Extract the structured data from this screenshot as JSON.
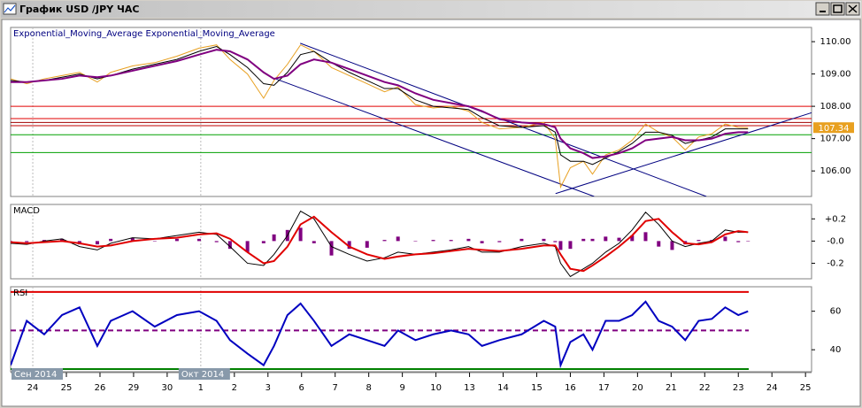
{
  "window_title": "График USD /JPY ЧАС",
  "x_axis": {
    "xlim": [
      -0.66,
      23.18
    ],
    "days": [
      "24",
      "25",
      "26",
      "29",
      "30",
      "1",
      "2",
      "3",
      "6",
      "7",
      "8",
      "9",
      "10",
      "13",
      "14",
      "15",
      "16",
      "17",
      "20",
      "21",
      "22",
      "23",
      "24",
      "25"
    ],
    "months": [
      {
        "value": 0,
        "label": "Сен 2014"
      },
      {
        "value": 5,
        "label": "Окт 2014"
      }
    ],
    "x": [
      -0.66,
      -0.18,
      0.34,
      0.87,
      1.39,
      1.92,
      2.32,
      2.97,
      3.63,
      4.29,
      4.95,
      5.47,
      5.87,
      6.39,
      6.87,
      7.18,
      7.58,
      7.97,
      8.37,
      8.89,
      9.42,
      9.95,
      10.47,
      10.87,
      11.39,
      11.92,
      12.45,
      12.97,
      13.37,
      13.89,
      14.55,
      15.21,
      15.55,
      15.71,
      16.0,
      16.39,
      16.66,
      17.05,
      17.45,
      17.84,
      18.24,
      18.63,
      19.03,
      19.42,
      19.82,
      20.21,
      20.61,
      21.0,
      21.29
    ]
  },
  "chart_data": [
    {
      "type": "line",
      "title": "Exponential_Moving_Average Exponential_Moving_Average",
      "ylim": [
        105.21,
        110.44
      ],
      "yticks": [
        {
          "value": 106,
          "label": "106.00"
        },
        {
          "value": 107,
          "label": "107.00"
        },
        {
          "value": 108,
          "label": "108.00"
        },
        {
          "value": 109,
          "label": "109.00"
        },
        {
          "value": 110,
          "label": "110.00"
        }
      ],
      "last_price": 107.34,
      "levels": [
        {
          "value": 108.0,
          "color": "#e00000"
        },
        {
          "value": 107.62,
          "color": "#e00000"
        },
        {
          "value": 107.5,
          "color": "#a00000"
        },
        {
          "value": 107.4,
          "color": "#c00000"
        },
        {
          "value": 107.12,
          "color": "#00a000"
        },
        {
          "value": 106.57,
          "color": "#00a000"
        }
      ],
      "trendlines": [
        {
          "points": [
            [
              7.96,
              109.95
            ],
            [
              20.05,
              105.21
            ]
          ],
          "color": "#000080"
        },
        {
          "points": [
            [
              7.2,
              108.86
            ],
            [
              16.71,
              105.21
            ]
          ],
          "color": "#000080"
        },
        {
          "points": [
            [
              15.56,
              105.3
            ],
            [
              23.18,
              107.8
            ]
          ],
          "color": "#000080"
        }
      ],
      "series": [
        {
          "color": "#e8a020",
          "width": 1,
          "values": [
            108.85,
            108.7,
            108.85,
            108.95,
            109.05,
            108.75,
            109.05,
            109.25,
            109.35,
            109.55,
            109.8,
            109.9,
            109.45,
            109.0,
            108.25,
            108.8,
            109.3,
            109.9,
            109.7,
            109.2,
            108.95,
            108.7,
            108.45,
            108.6,
            108.05,
            107.95,
            108.0,
            107.85,
            107.5,
            107.3,
            107.35,
            107.5,
            107.0,
            105.5,
            106.1,
            106.3,
            105.9,
            106.5,
            106.65,
            106.95,
            107.45,
            107.2,
            107.05,
            106.65,
            107.05,
            107.15,
            107.45,
            107.35,
            107.34
          ]
        },
        {
          "color": "#000000",
          "width": 1,
          "values": [
            108.8,
            108.75,
            108.8,
            108.9,
            109.0,
            108.85,
            108.95,
            109.15,
            109.3,
            109.45,
            109.7,
            109.85,
            109.6,
            109.2,
            108.7,
            108.65,
            109.05,
            109.6,
            109.7,
            109.35,
            109.05,
            108.8,
            108.55,
            108.55,
            108.2,
            108.0,
            107.95,
            107.9,
            107.65,
            107.4,
            107.35,
            107.4,
            107.2,
            106.5,
            106.3,
            106.3,
            106.2,
            106.4,
            106.6,
            106.85,
            107.2,
            107.2,
            107.1,
            106.85,
            106.95,
            107.05,
            107.3,
            107.3,
            107.3
          ]
        },
        {
          "color": "#800080",
          "width": 2,
          "values": [
            108.75,
            108.75,
            108.8,
            108.85,
            108.95,
            108.9,
            108.95,
            109.1,
            109.25,
            109.4,
            109.6,
            109.75,
            109.7,
            109.45,
            109.05,
            108.85,
            108.95,
            109.3,
            109.45,
            109.35,
            109.15,
            108.95,
            108.75,
            108.65,
            108.4,
            108.2,
            108.1,
            108.0,
            107.85,
            107.6,
            107.5,
            107.45,
            107.35,
            107.0,
            106.7,
            106.55,
            106.4,
            106.45,
            106.55,
            106.7,
            106.95,
            107.0,
            107.05,
            106.95,
            106.95,
            107.0,
            107.15,
            107.2,
            107.2
          ]
        }
      ]
    },
    {
      "type": "macd",
      "title": "MACD",
      "ylim": [
        -0.34,
        0.33
      ],
      "yticks": [
        {
          "value": -0.2,
          "label": "-0.2"
        },
        {
          "value": 0,
          "label": "-0.0"
        },
        {
          "value": 0.2,
          "label": "+0.2"
        }
      ],
      "histogram": {
        "color": "#800080",
        "values": [
          -0.01,
          -0.01,
          0.01,
          0.02,
          -0.03,
          -0.03,
          0.02,
          0.03,
          0.0,
          0.02,
          0.02,
          -0.01,
          -0.07,
          -0.1,
          -0.02,
          0.06,
          0.1,
          0.12,
          -0.02,
          -0.13,
          -0.07,
          -0.06,
          0.01,
          0.04,
          0.0,
          0.01,
          0.01,
          0.02,
          -0.02,
          -0.01,
          0.02,
          0.02,
          -0.01,
          -0.08,
          -0.07,
          0.02,
          0.02,
          0.04,
          0.03,
          0.05,
          0.08,
          -0.05,
          -0.08,
          -0.03,
          0.01,
          0.01,
          0.04,
          -0.01,
          0.0
        ]
      },
      "series": [
        {
          "color": "#000000",
          "width": 1,
          "values": [
            -0.02,
            -0.03,
            0.0,
            0.02,
            -0.05,
            -0.08,
            -0.02,
            0.03,
            0.02,
            0.05,
            0.08,
            0.06,
            -0.05,
            -0.2,
            -0.22,
            -0.12,
            0.05,
            0.27,
            0.2,
            -0.05,
            -0.12,
            -0.18,
            -0.15,
            -0.1,
            -0.12,
            -0.1,
            -0.08,
            -0.05,
            -0.1,
            -0.1,
            -0.05,
            -0.02,
            -0.05,
            -0.2,
            -0.32,
            -0.25,
            -0.2,
            -0.1,
            -0.02,
            0.1,
            0.26,
            0.15,
            0.0,
            -0.05,
            -0.02,
            0.0,
            0.1,
            0.08,
            0.08
          ]
        },
        {
          "color": "#e00000",
          "width": 2,
          "values": [
            -0.01,
            -0.02,
            -0.01,
            0.0,
            -0.02,
            -0.05,
            -0.04,
            0.0,
            0.02,
            0.03,
            0.06,
            0.07,
            0.02,
            -0.1,
            -0.2,
            -0.18,
            -0.05,
            0.15,
            0.22,
            0.08,
            -0.05,
            -0.12,
            -0.16,
            -0.14,
            -0.12,
            -0.11,
            -0.09,
            -0.07,
            -0.08,
            -0.09,
            -0.07,
            -0.04,
            -0.04,
            -0.12,
            -0.25,
            -0.27,
            -0.22,
            -0.14,
            -0.05,
            0.05,
            0.18,
            0.2,
            0.08,
            -0.02,
            -0.03,
            -0.01,
            0.06,
            0.09,
            0.08
          ]
        }
      ]
    },
    {
      "type": "line",
      "title": "RSI",
      "ylim": [
        28.6,
        72.7
      ],
      "yticks": [
        40,
        60
      ],
      "levels": [
        {
          "value": 70,
          "color": "#e00000"
        },
        {
          "value": 50,
          "color": "#800080",
          "style": "dashed"
        },
        {
          "value": 30,
          "color": "#008000"
        }
      ],
      "series": [
        {
          "color": "#0000c0",
          "width": 2,
          "values": [
            32,
            55,
            48,
            58,
            62,
            42,
            55,
            60,
            52,
            58,
            60,
            55,
            45,
            38,
            32,
            42,
            58,
            64,
            55,
            42,
            48,
            45,
            42,
            50,
            45,
            48,
            50,
            48,
            42,
            45,
            48,
            55,
            52,
            32,
            44,
            48,
            40,
            55,
            55,
            58,
            65,
            55,
            52,
            45,
            55,
            56,
            62,
            58,
            60
          ]
        }
      ]
    }
  ]
}
